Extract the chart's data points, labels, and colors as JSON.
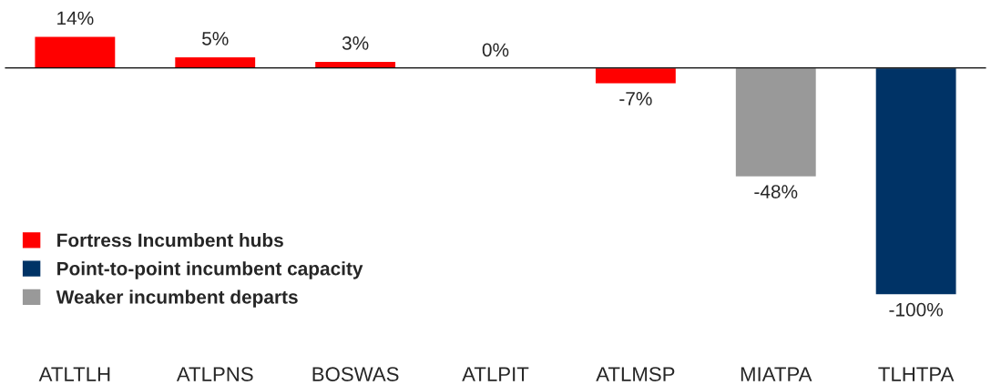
{
  "chart_data": {
    "type": "bar",
    "stacked": true,
    "categories": [
      "ATLTLH",
      "ATLPNS",
      "BOSWAS",
      "ATLPIT",
      "ATLMSP",
      "MIATPA",
      "TLHTPA"
    ],
    "series": [
      {
        "name": "Fortress Incumbent hubs",
        "color": "#ff0000",
        "values": [
          14,
          5,
          3,
          0,
          -7,
          null,
          null
        ],
        "value_labels": [
          "14%",
          "5%",
          "3%",
          "0%",
          "-7%",
          null,
          null
        ]
      },
      {
        "name": "Point-to-point incumbent capacity",
        "color": "#003366",
        "values": [
          null,
          null,
          null,
          null,
          null,
          null,
          -100
        ],
        "value_labels": [
          null,
          null,
          null,
          null,
          null,
          null,
          "-100%"
        ]
      },
      {
        "name": "Weaker incumbent departs",
        "color": "#999999",
        "values": [
          null,
          null,
          null,
          null,
          null,
          -48,
          null
        ],
        "value_labels": [
          null,
          null,
          null,
          null,
          null,
          "-48%",
          null
        ]
      }
    ],
    "legend": "bottom left",
    "grid": false
  }
}
